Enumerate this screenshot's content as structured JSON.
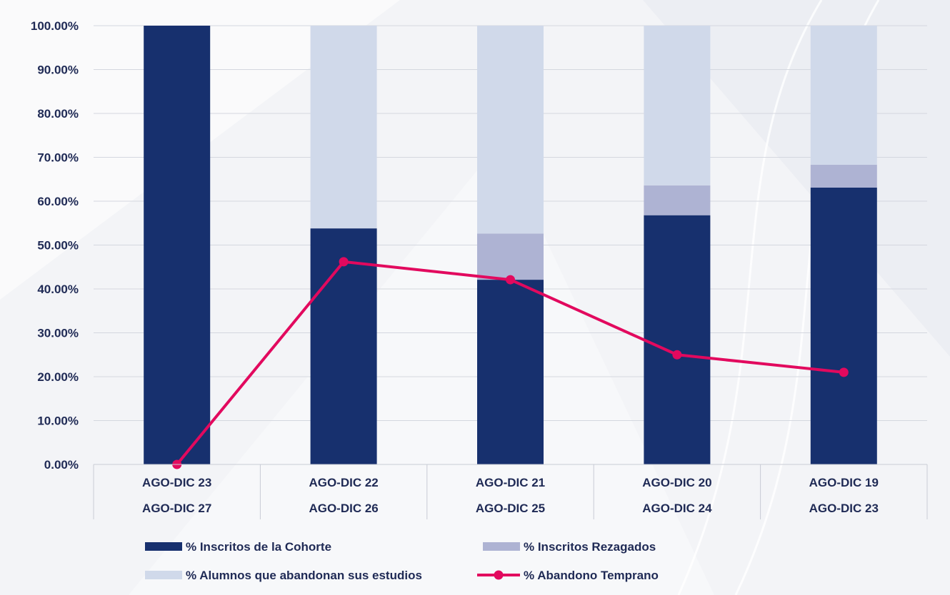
{
  "chart_data": {
    "type": "bar",
    "stacked": true,
    "categories": [
      [
        "AGO-DIC 23",
        "AGO-DIC 27"
      ],
      [
        "AGO-DIC 22",
        "AGO-DIC 26"
      ],
      [
        "AGO-DIC 21",
        "AGO-DIC 25"
      ],
      [
        "AGO-DIC 20",
        "AGO-DIC 24"
      ],
      [
        "AGO-DIC 19",
        "AGO-DIC 23"
      ]
    ],
    "ylim": [
      0,
      100
    ],
    "yticks": [
      "0.00%",
      "10.00%",
      "20.00%",
      "30.00%",
      "40.00%",
      "50.00%",
      "60.00%",
      "70.00%",
      "80.00%",
      "90.00%",
      "100.00%"
    ],
    "grid": true,
    "legend_position": "bottom",
    "series": [
      {
        "name": "% Inscritos de la Cohorte",
        "kind": "bar",
        "color": "#17306e",
        "values": [
          100,
          53.8,
          42.1,
          56.8,
          63.1
        ]
      },
      {
        "name": "% Inscritos Rezagados",
        "kind": "bar",
        "color": "#aeb3d3",
        "values": [
          0,
          0,
          10.5,
          6.8,
          5.2
        ]
      },
      {
        "name": "% Alumnos que abandonan sus estudios",
        "kind": "bar",
        "color": "#d0d9ea",
        "values": [
          0,
          46.2,
          47.4,
          36.4,
          31.7
        ]
      },
      {
        "name": "% Abandono Temprano",
        "kind": "line",
        "color": "#e2095e",
        "values": [
          0,
          46.2,
          42.1,
          25.0,
          21.0
        ]
      }
    ]
  }
}
